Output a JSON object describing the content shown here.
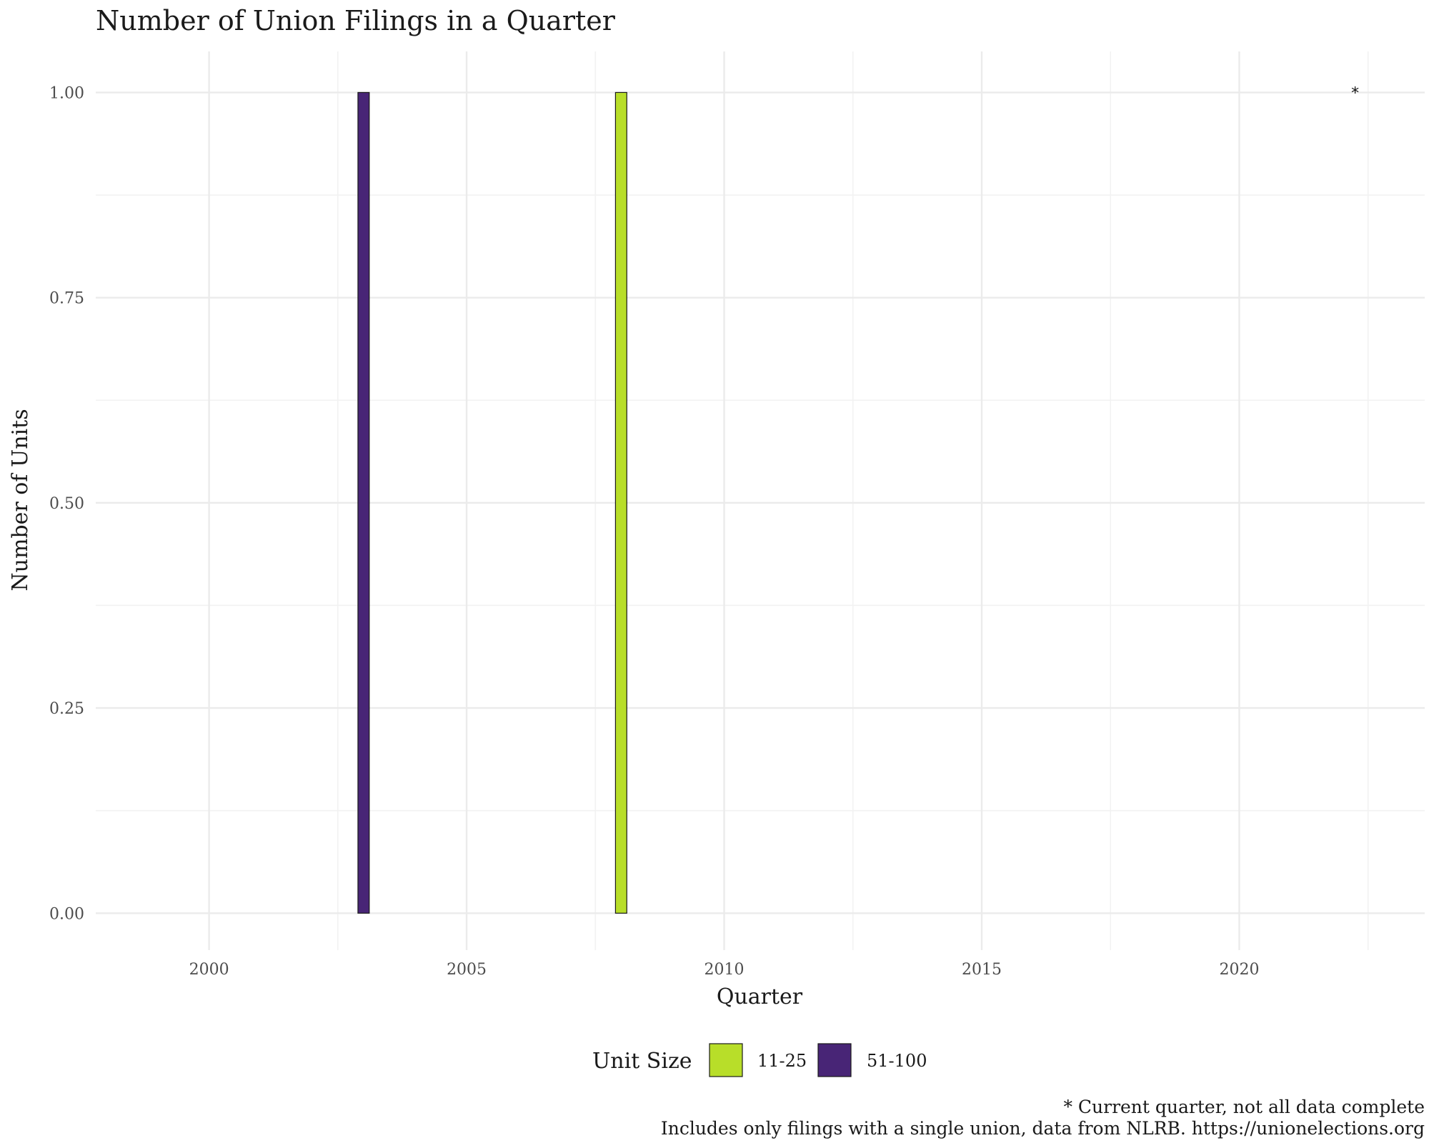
{
  "chart_data": {
    "type": "bar",
    "title": "Number of Union Filings in a Quarter",
    "xlabel": "Quarter",
    "ylabel": "Number of Units",
    "x_ticks": [
      "2000",
      "2005",
      "2010",
      "2015",
      "2020"
    ],
    "y_ticks": [
      "0.00",
      "0.25",
      "0.50",
      "0.75",
      "1.00"
    ],
    "xlim": [
      1997.8,
      2023.6
    ],
    "ylim": [
      -0.045,
      1.05
    ],
    "grid": true,
    "legend": {
      "title": "Unit Size",
      "position": "bottom",
      "entries": [
        {
          "label": "11-25",
          "color": "#b8de29"
        },
        {
          "label": "51-100",
          "color": "#482576"
        }
      ]
    },
    "series": [
      {
        "name": "11-25",
        "color": "#b8de29",
        "points": [
          {
            "x": "2008 Q1",
            "y": 1
          }
        ]
      },
      {
        "name": "51-100",
        "color": "#482576",
        "points": [
          {
            "x": "2003 Q1",
            "y": 1
          }
        ]
      }
    ],
    "annotations": [
      {
        "text": "*",
        "x": "2022 Q2",
        "y": 1
      }
    ],
    "caption_lines": [
      "* Current quarter, not all data complete",
      "Includes only filings with a single union, data from NLRB. https://unionelections.org"
    ]
  }
}
